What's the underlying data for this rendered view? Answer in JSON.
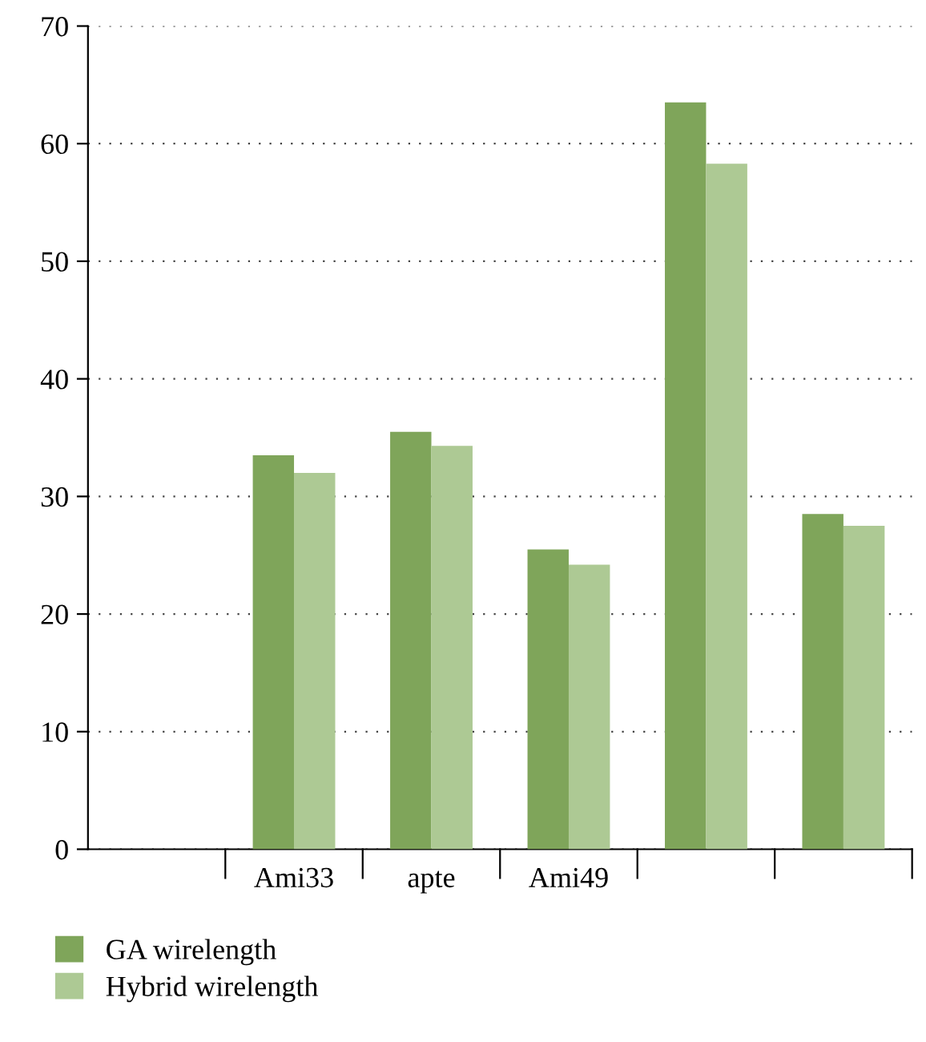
{
  "chart_data": {
    "type": "bar",
    "categories": [
      null,
      "Ami33",
      "apte",
      "Ami49",
      null,
      null
    ],
    "series": [
      {
        "name": "GA wirelength",
        "color": "#7fa55a",
        "values": [
          null,
          33.5,
          35.5,
          25.5,
          63.5,
          28.5
        ]
      },
      {
        "name": "Hybrid wirelength",
        "color": "#adc994",
        "values": [
          null,
          32,
          34.3,
          24.2,
          58.3,
          27.5
        ]
      }
    ],
    "ylim": [
      0,
      70
    ],
    "yticks": [
      0,
      10,
      20,
      30,
      40,
      50,
      60,
      70
    ],
    "grid": "y",
    "legend": "bottom left"
  }
}
